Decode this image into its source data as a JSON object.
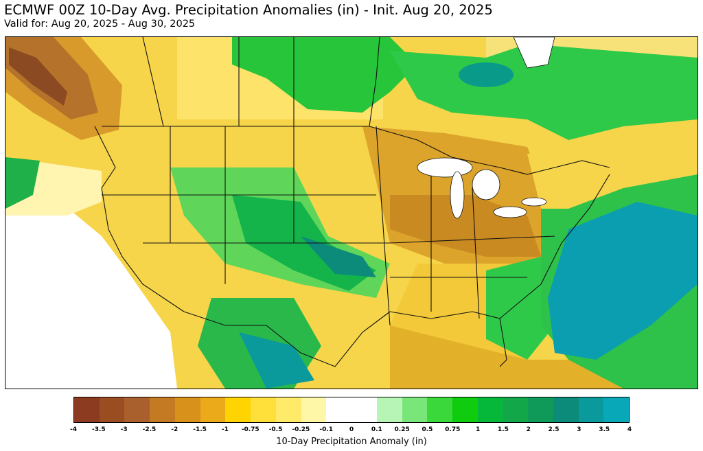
{
  "header": {
    "title": "ECMWF 00Z 10-Day Avg. Precipitation Anomalies (in) - Init. Aug 20, 2025",
    "subtitle": "Valid for: Aug 20, 2025 - Aug 30, 2025"
  },
  "map": {
    "colors": {
      "water": "#ffffff",
      "state_border": "#111111",
      "county_border": "#b8a46a"
    }
  },
  "colorbar": {
    "label": "10-Day Precipitation Anomaly (in)",
    "ticks": [
      "-4",
      "-3.5",
      "-3",
      "-2.5",
      "-2",
      "-1.5",
      "-1",
      "-0.75",
      "-0.5",
      "-0.25",
      "-0.1",
      "0",
      "0.1",
      "0.25",
      "0.5",
      "0.75",
      "1",
      "1.5",
      "2",
      "2.5",
      "3",
      "3.5",
      "4"
    ],
    "colors": [
      "#8c3a20",
      "#9b4d22",
      "#a9602c",
      "#c47a22",
      "#d8921c",
      "#eaaa1a",
      "#ffd400",
      "#ffdf3a",
      "#ffea6a",
      "#fff7a8",
      "#ffffff",
      "#ffffff",
      "#b6f5b6",
      "#78e678",
      "#3ad83a",
      "#0fcc0f",
      "#05b83a",
      "#12a84a",
      "#0f9a5a",
      "#0c8a7a",
      "#0a9a9c",
      "#08a8b8"
    ]
  }
}
